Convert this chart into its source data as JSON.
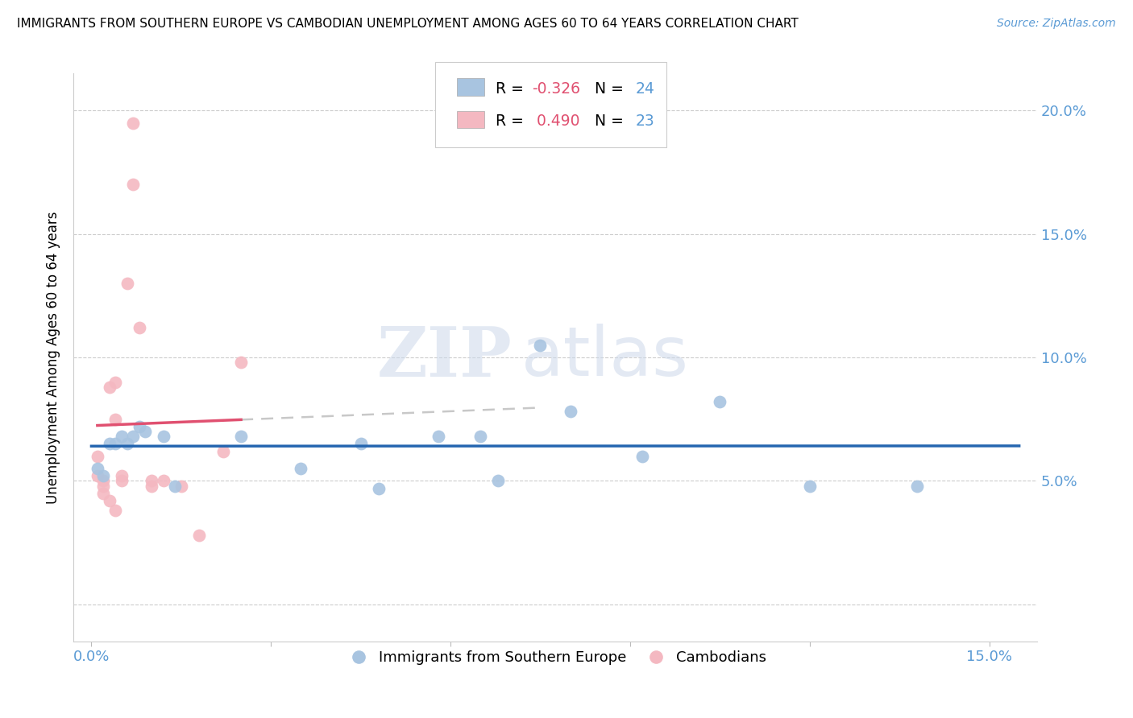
{
  "title": "IMMIGRANTS FROM SOUTHERN EUROPE VS CAMBODIAN UNEMPLOYMENT AMONG AGES 60 TO 64 YEARS CORRELATION CHART",
  "source": "Source: ZipAtlas.com",
  "ylabel": "Unemployment Among Ages 60 to 64 years",
  "xlim": [
    -0.003,
    0.158
  ],
  "ylim": [
    -0.015,
    0.215
  ],
  "blue_R": "-0.326",
  "blue_N": "24",
  "pink_R": "0.490",
  "pink_N": "23",
  "watermark_zip": "ZIP",
  "watermark_atlas": "atlas",
  "blue_color": "#a8c4e0",
  "pink_color": "#f4b8c1",
  "blue_line_color": "#2566b0",
  "pink_line_color": "#e05070",
  "blue_scatter": [
    [
      0.001,
      0.055
    ],
    [
      0.002,
      0.052
    ],
    [
      0.003,
      0.065
    ],
    [
      0.004,
      0.065
    ],
    [
      0.005,
      0.068
    ],
    [
      0.006,
      0.065
    ],
    [
      0.007,
      0.068
    ],
    [
      0.008,
      0.072
    ],
    [
      0.009,
      0.07
    ],
    [
      0.012,
      0.068
    ],
    [
      0.014,
      0.048
    ],
    [
      0.025,
      0.068
    ],
    [
      0.035,
      0.055
    ],
    [
      0.045,
      0.065
    ],
    [
      0.048,
      0.047
    ],
    [
      0.058,
      0.068
    ],
    [
      0.065,
      0.068
    ],
    [
      0.068,
      0.05
    ],
    [
      0.075,
      0.105
    ],
    [
      0.08,
      0.078
    ],
    [
      0.092,
      0.06
    ],
    [
      0.105,
      0.082
    ],
    [
      0.12,
      0.048
    ],
    [
      0.138,
      0.048
    ]
  ],
  "pink_scatter": [
    [
      0.001,
      0.052
    ],
    [
      0.001,
      0.06
    ],
    [
      0.002,
      0.048
    ],
    [
      0.002,
      0.05
    ],
    [
      0.002,
      0.045
    ],
    [
      0.003,
      0.042
    ],
    [
      0.003,
      0.088
    ],
    [
      0.004,
      0.09
    ],
    [
      0.004,
      0.075
    ],
    [
      0.004,
      0.038
    ],
    [
      0.005,
      0.052
    ],
    [
      0.005,
      0.05
    ],
    [
      0.006,
      0.13
    ],
    [
      0.007,
      0.17
    ],
    [
      0.007,
      0.195
    ],
    [
      0.008,
      0.112
    ],
    [
      0.01,
      0.048
    ],
    [
      0.01,
      0.05
    ],
    [
      0.012,
      0.05
    ],
    [
      0.015,
      0.048
    ],
    [
      0.018,
      0.028
    ],
    [
      0.022,
      0.062
    ],
    [
      0.025,
      0.098
    ]
  ],
  "blue_marker_size": 130,
  "pink_marker_size": 130,
  "x_tick_positions": [
    0.0,
    0.03,
    0.06,
    0.09,
    0.12,
    0.15
  ],
  "x_tick_labels": [
    "0.0%",
    "",
    "",
    "",
    "",
    "15.0%"
  ],
  "y_tick_positions": [
    0.0,
    0.05,
    0.1,
    0.15,
    0.2
  ],
  "y_tick_labels_right": [
    "",
    "5.0%",
    "10.0%",
    "15.0%",
    "20.0%"
  ]
}
